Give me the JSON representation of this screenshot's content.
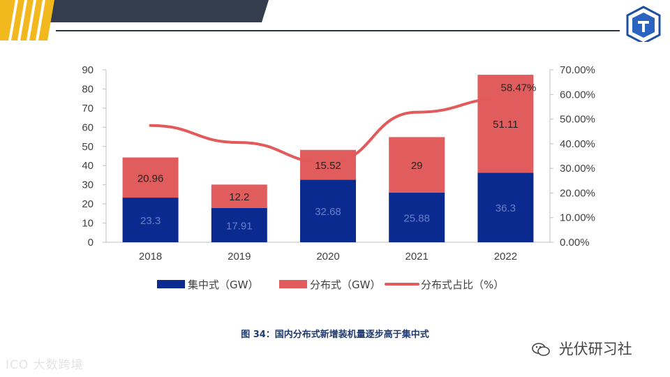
{
  "chart_data": {
    "type": "bar",
    "stacked": true,
    "categories": [
      "2018",
      "2019",
      "2020",
      "2021",
      "2022"
    ],
    "series": [
      {
        "name": "集中式（GW）",
        "kind": "bar",
        "axis": "left",
        "color": "#0a2a8f",
        "values": [
          23.3,
          17.91,
          32.68,
          25.88,
          36.3
        ],
        "labels": [
          "23.3",
          "17.91",
          "32.68",
          "25.88",
          "36.3"
        ]
      },
      {
        "name": "分布式（GW）",
        "kind": "bar",
        "axis": "left",
        "color": "#e15d5d",
        "values": [
          20.96,
          12.2,
          15.52,
          29,
          51.11
        ],
        "labels": [
          "20.96",
          "12.2",
          "15.52",
          "29",
          "51.11"
        ]
      },
      {
        "name": "分布式占比（%）",
        "kind": "line",
        "axis": "right",
        "color": "#e35a5a",
        "values": [
          47.4,
          40.5,
          32.2,
          52.8,
          58.47
        ]
      }
    ],
    "annotation": "58.47%",
    "ylim": [
      0,
      90
    ],
    "y_ticks": [
      "0",
      "10",
      "20",
      "30",
      "40",
      "50",
      "60",
      "70",
      "80",
      "90"
    ],
    "y2lim": [
      0,
      70
    ],
    "y2_ticks": [
      "0.00%",
      "10.00%",
      "20.00%",
      "30.00%",
      "40.00%",
      "50.00%",
      "60.00%",
      "70.00%"
    ],
    "legend_position": "bottom"
  },
  "caption": "图 34：国内分布式新增装机量逐步高于集中式",
  "watermark_left": "大数跨境",
  "watermark_right": "光伏研习社"
}
